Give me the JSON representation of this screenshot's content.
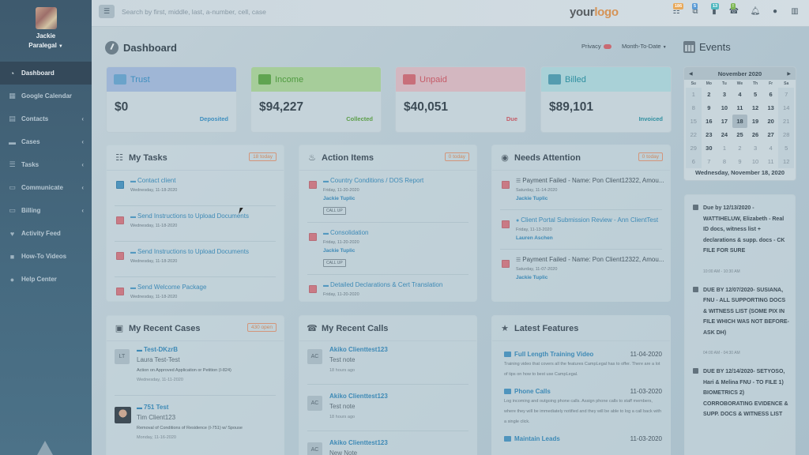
{
  "topbar": {
    "search_placeholder": "Search by first, middle, last, a-number, cell, case",
    "logo_part1": "your",
    "logo_part2": "logo",
    "icons": [
      {
        "name": "tasks-icon",
        "badge": "186",
        "badge_color": "#e8a95a"
      },
      {
        "name": "messages-icon",
        "badge": "5",
        "badge_color": "#5a9bd6"
      },
      {
        "name": "mobile-icon",
        "badge": "13",
        "badge_color": "#4fb8c0"
      },
      {
        "name": "phone-icon",
        "badge": "!",
        "badge_color": "#7fb855"
      },
      {
        "name": "bell-icon",
        "badge": null
      },
      {
        "name": "chat-icon",
        "badge": null
      },
      {
        "name": "list-icon",
        "badge": null
      }
    ]
  },
  "sidebar": {
    "user_name": "Jackie",
    "user_role": "Paralegal",
    "items": [
      {
        "label": "Dashboard",
        "icon": "dashboard-icon",
        "active": true,
        "expandable": false
      },
      {
        "label": "Google Calendar",
        "icon": "calendar-icon",
        "active": false,
        "expandable": false
      },
      {
        "label": "Contacts",
        "icon": "contacts-icon",
        "active": false,
        "expandable": true
      },
      {
        "label": "Cases",
        "icon": "briefcase-icon",
        "active": false,
        "expandable": true
      },
      {
        "label": "Tasks",
        "icon": "tasks-icon",
        "active": false,
        "expandable": true
      },
      {
        "label": "Communicate",
        "icon": "devices-icon",
        "active": false,
        "expandable": true
      },
      {
        "label": "Billing",
        "icon": "billing-icon",
        "active": false,
        "expandable": true
      },
      {
        "label": "Activity Feed",
        "icon": "heartbeat-icon",
        "active": false,
        "expandable": false
      },
      {
        "label": "How-To Videos",
        "icon": "video-icon",
        "active": false,
        "expandable": false
      },
      {
        "label": "Help Center",
        "icon": "support-icon",
        "active": false,
        "expandable": false
      }
    ]
  },
  "page": {
    "title": "Dashboard",
    "privacy_label": "Privacy",
    "period_label": "Month-To-Date"
  },
  "stats": [
    {
      "title": "Trust",
      "amount": "$0",
      "label": "Deposited",
      "head_color": "#9fb6d6",
      "title_color": "#3f8fbf",
      "label_color": "#3f8fbf"
    },
    {
      "title": "Income",
      "amount": "$94,227",
      "label": "Collected",
      "head_color": "#a6cd9a",
      "title_color": "#4f9a3f",
      "label_color": "#5c9e48"
    },
    {
      "title": "Unpaid",
      "amount": "$40,051",
      "label": "Due",
      "head_color": "#d3b7c0",
      "title_color": "#c55c68",
      "label_color": "#c55c68"
    },
    {
      "title": "Billed",
      "amount": "$89,101",
      "label": "Invoiced",
      "head_color": "#a9d1d7",
      "title_color": "#2f8fa0",
      "label_color": "#2f8fa0"
    }
  ],
  "my_tasks": {
    "title": "My Tasks",
    "badge": "18 today",
    "items": [
      {
        "title": "Contact client",
        "date": "Wednesday, 11-18-2020",
        "status": "blue"
      },
      {
        "title": "Send Instructions to Upload Documents",
        "date": "Wednesday, 11-18-2020",
        "status": "red"
      },
      {
        "title": "Send Instructions to Upload Documents",
        "date": "Wednesday, 11-18-2020",
        "status": "red"
      },
      {
        "title": "Send Welcome Package",
        "date": "Wednesday, 11-18-2020",
        "status": "red"
      }
    ]
  },
  "action_items": {
    "title": "Action Items",
    "badge": "0 today",
    "items": [
      {
        "title": "Country Conditions / DOS Report",
        "date": "Friday, 11-20-2020",
        "user": "Jackie Tuplic",
        "button": "CALL UP"
      },
      {
        "title": "Consolidation",
        "date": "Friday, 11-20-2020",
        "user": "Jackie Tuplic",
        "button": "CALL UP"
      },
      {
        "title": "Detailed Declarations & Cert Translation",
        "date": "Friday, 11-20-2020",
        "user": "",
        "button": ""
      }
    ]
  },
  "needs_attention": {
    "title": "Needs Attention",
    "badge": "0 today",
    "items": [
      {
        "title": "Payment Failed - Name: Pon Client12322, Amou...",
        "date": "Saturday, 11-14-2020",
        "user": "Jackie Tuplic",
        "link": false
      },
      {
        "title": "Client Portal Submission Review - Ann ClientTest",
        "date": "Friday, 11-13-2020",
        "user": "Lauren Aschen",
        "link": true
      },
      {
        "title": "Payment Failed - Name: Pon Client12322, Amou...",
        "date": "Saturday, 11-07-2020",
        "user": "Jackie Tuplic",
        "link": false
      }
    ]
  },
  "recent_cases": {
    "title": "My Recent Cases",
    "badge": "430 open",
    "items": [
      {
        "initials": "LT",
        "case": "Test-DKzrB",
        "client": "Laura Test-Test",
        "type": "Action on Approved Application or Petition (I-824)",
        "date": "Wednesday, 11-11-2020"
      },
      {
        "initials": "",
        "case": "751 Test",
        "client": "Tim Client123",
        "type": "Removal of Conditions of Residence (I-751) w/ Spouse",
        "date": "Monday, 11-16-2020"
      }
    ]
  },
  "recent_calls": {
    "title": "My Recent Calls",
    "items": [
      {
        "initials": "AC",
        "name": "Akiko Clienttest123",
        "note": "Test note",
        "time": "18 hours ago"
      },
      {
        "initials": "AC",
        "name": "Akiko Clienttest123",
        "note": "Test note",
        "time": "18 hours ago"
      },
      {
        "initials": "AC",
        "name": "Akiko Clienttest123",
        "note": "New Note",
        "time": ""
      }
    ]
  },
  "latest_features": {
    "title": "Latest Features",
    "items": [
      {
        "name": "Full Length Training Video",
        "date": "11-04-2020",
        "desc": "Training video that covers all the features CampLegal has to offer. There are a lot of tips on how to best use CampLegal."
      },
      {
        "name": "Phone Calls",
        "date": "11-03-2020",
        "desc": "Log incoming and outgoing phone calls. Assign phone calls to staff members, where they will be immediately notified and they will be able to log a call back with a single click."
      },
      {
        "name": "Maintain Leads",
        "date": "11-03-2020",
        "desc": ""
      }
    ]
  },
  "events": {
    "title": "Events",
    "calendar": {
      "month_label": "November 2020",
      "weekdays": [
        "Su",
        "Mo",
        "Tu",
        "We",
        "Th",
        "Fr",
        "Sa"
      ],
      "days": [
        {
          "d": "1",
          "m": false
        },
        {
          "d": "2",
          "m": false
        },
        {
          "d": "3",
          "m": false
        },
        {
          "d": "4",
          "m": false
        },
        {
          "d": "5",
          "m": false
        },
        {
          "d": "6",
          "m": false
        },
        {
          "d": "7",
          "m": false
        },
        {
          "d": "8",
          "m": false
        },
        {
          "d": "9",
          "m": false
        },
        {
          "d": "10",
          "m": false
        },
        {
          "d": "11",
          "m": false
        },
        {
          "d": "12",
          "m": false
        },
        {
          "d": "13",
          "m": false
        },
        {
          "d": "14",
          "m": false
        },
        {
          "d": "15",
          "m": false
        },
        {
          "d": "16",
          "m": false
        },
        {
          "d": "17",
          "m": false
        },
        {
          "d": "18",
          "m": false
        },
        {
          "d": "19",
          "m": false
        },
        {
          "d": "20",
          "m": false
        },
        {
          "d": "21",
          "m": false
        },
        {
          "d": "22",
          "m": false
        },
        {
          "d": "23",
          "m": false
        },
        {
          "d": "24",
          "m": false
        },
        {
          "d": "25",
          "m": false
        },
        {
          "d": "26",
          "m": false
        },
        {
          "d": "27",
          "m": false
        },
        {
          "d": "28",
          "m": false
        },
        {
          "d": "29",
          "m": false
        },
        {
          "d": "30",
          "m": false
        },
        {
          "d": "1",
          "m": true
        },
        {
          "d": "2",
          "m": true
        },
        {
          "d": "3",
          "m": true
        },
        {
          "d": "4",
          "m": true
        },
        {
          "d": "5",
          "m": true
        },
        {
          "d": "6",
          "m": true
        },
        {
          "d": "7",
          "m": true
        },
        {
          "d": "8",
          "m": true
        },
        {
          "d": "9",
          "m": true
        },
        {
          "d": "10",
          "m": true
        },
        {
          "d": "11",
          "m": true
        },
        {
          "d": "12",
          "m": true
        }
      ],
      "selected": "18",
      "selected_label": "Wednesday, November 18, 2020"
    },
    "items": [
      {
        "text": "Due by 12/13/2020 - WATTIHELUW, Elizabeth - Real ID docs, witness list + declarations & supp. docs - CK FILE FOR SURE",
        "time": "10:00 AM - 10:30 AM"
      },
      {
        "text": "DUE BY 12/07/2020- SUSIANA, FNU - ALL SUPPORTING DOCS & WITNESS LIST (SOME PIX IN FILE WHICH WAS NOT BEFORE-ASK DH)",
        "time": "04:00 AM - 04:30 AM"
      },
      {
        "text": "DUE BY 12/14/2020- SETYOSO, Hari & Melina FNU - TO FILE 1) BIOMETRICS 2) CORROBORATING EVIDENCE & SUPP. DOCS & WITNESS LIST",
        "time": ""
      }
    ]
  }
}
